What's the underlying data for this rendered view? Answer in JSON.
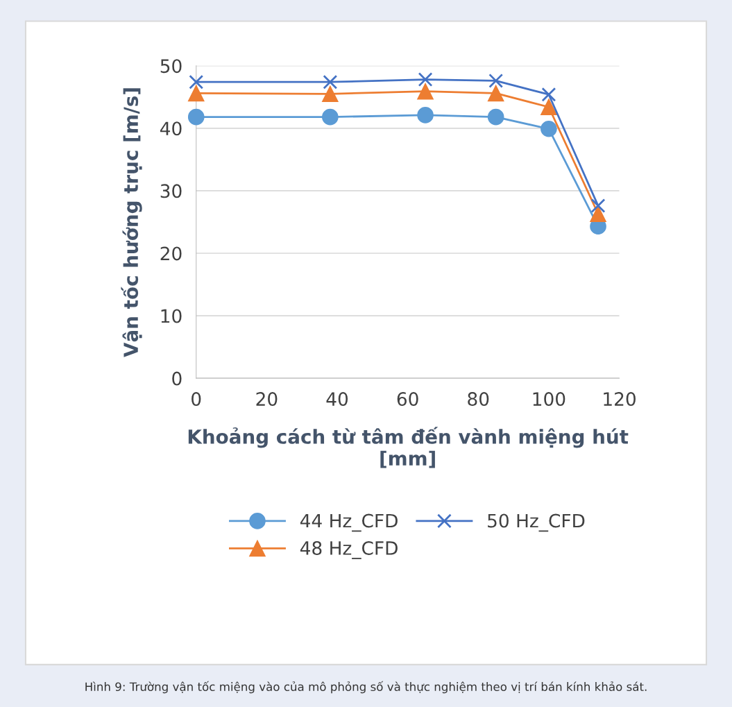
{
  "chart_data": {
    "type": "line",
    "xlabel": "Khoảng cách từ tâm đến vành miệng hút\n[mm]",
    "ylabel": "Vận tốc hướng trục [m/s]",
    "x": [
      0,
      38,
      65,
      85,
      100,
      114
    ],
    "series": [
      {
        "name": "44 Hz_CFD",
        "color": "#5b9bd5",
        "marker": "circle",
        "values": [
          41.8,
          41.8,
          42.1,
          41.8,
          39.9,
          24.3
        ]
      },
      {
        "name": "48 Hz_CFD",
        "color": "#ed7d31",
        "marker": "triangle",
        "values": [
          45.6,
          45.5,
          45.9,
          45.6,
          43.4,
          26.3
        ]
      },
      {
        "name": "50 Hz_CFD",
        "color": "#4472c4",
        "marker": "cross",
        "values": [
          47.4,
          47.4,
          47.8,
          47.6,
          45.4,
          27.6
        ]
      }
    ],
    "xlim": [
      0,
      120
    ],
    "xticks": [
      0,
      20,
      40,
      60,
      80,
      100,
      120
    ],
    "ylim": [
      0,
      50
    ],
    "yticks": [
      0,
      10,
      20,
      30,
      40,
      50
    ],
    "grid": "y",
    "legend": "bottom",
    "annotations": [
      "Hình 9: Trường vận tốc miệng vào của mô phỏng số và thực nghiệm theo vị trí bán kính khảo sát."
    ]
  }
}
